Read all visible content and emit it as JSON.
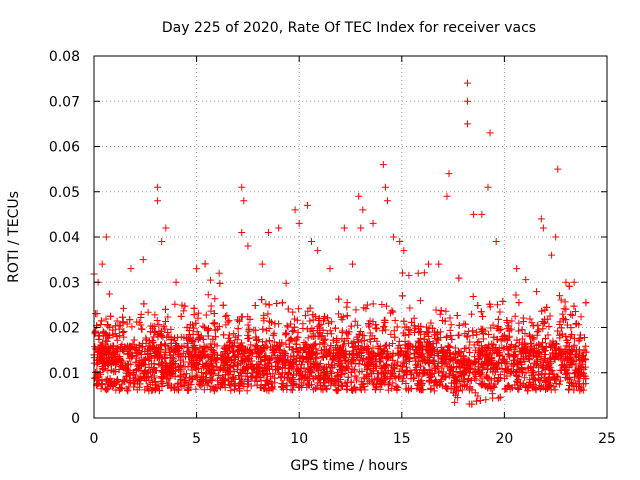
{
  "chart_data": {
    "type": "scatter",
    "title": "Day 225 of 2020, Rate Of TEC Index for receiver vacs",
    "xlabel": "GPS time / hours",
    "ylabel": "ROTI / TECUs",
    "xlim": [
      0,
      25
    ],
    "ylim": [
      0,
      0.08
    ],
    "x_ticks": [
      "0",
      "5",
      "10",
      "15",
      "20",
      "25"
    ],
    "y_ticks": [
      "0",
      "0.01",
      "0.02",
      "0.03",
      "0.04",
      "0.05",
      "0.06",
      "0.07",
      "0.08"
    ],
    "grid": true,
    "marker": "+",
    "color": "#ff0000",
    "series": [
      {
        "x": [
          3.1,
          3.1,
          3.5,
          3.3,
          0.6,
          0.4,
          0.2,
          5.0,
          7.2,
          7.3,
          7.2,
          7.5,
          8.5,
          9.0,
          9.8,
          10.0,
          10.4,
          10.6,
          10.9,
          12.2,
          12.9,
          13.1,
          13.0,
          13.6,
          14.1,
          14.2,
          14.3,
          14.6,
          14.9,
          15.1,
          16.3,
          17.3,
          17.2,
          18.2,
          18.2,
          18.2,
          18.5,
          18.9,
          19.3,
          19.2,
          19.6,
          21.8,
          21.9,
          22.5,
          22.6,
          22.3,
          23.4,
          1.8,
          2.4,
          4.0,
          6.1,
          8.2,
          11.5,
          12.6,
          15.8,
          16.8,
          20.6,
          23.0
        ],
        "y": [
          0.051,
          0.048,
          0.042,
          0.039,
          0.04,
          0.034,
          0.03,
          0.033,
          0.051,
          0.048,
          0.041,
          0.038,
          0.041,
          0.042,
          0.046,
          0.043,
          0.047,
          0.039,
          0.037,
          0.042,
          0.049,
          0.046,
          0.042,
          0.043,
          0.056,
          0.051,
          0.048,
          0.04,
          0.039,
          0.037,
          0.034,
          0.054,
          0.049,
          0.074,
          0.07,
          0.065,
          0.045,
          0.045,
          0.063,
          0.051,
          0.039,
          0.044,
          0.042,
          0.04,
          0.055,
          0.036,
          0.03,
          0.033,
          0.035,
          0.03,
          0.032,
          0.034,
          0.033,
          0.034,
          0.032,
          0.034,
          0.033,
          0.03
        ]
      }
    ],
    "bulk_note_hidden": "",
    "bulk": {
      "x_range": [
        0,
        24
      ],
      "y_typical": [
        0.002,
        0.028
      ]
    }
  }
}
